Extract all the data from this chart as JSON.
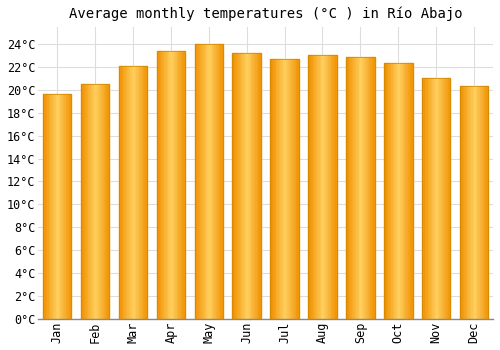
{
  "title": "Average monthly temperatures (°C ) in Río Abajo",
  "months": [
    "Jan",
    "Feb",
    "Mar",
    "Apr",
    "May",
    "Jun",
    "Jul",
    "Aug",
    "Sep",
    "Oct",
    "Nov",
    "Dec"
  ],
  "values": [
    19.6,
    20.5,
    22.1,
    23.4,
    24.0,
    23.2,
    22.7,
    23.0,
    22.9,
    22.3,
    21.0,
    20.3
  ],
  "bar_color_main": "#FFC125",
  "bar_color_edge": "#E8A000",
  "bar_gradient_left": "#FFDD88",
  "bar_gradient_right": "#FFA000",
  "background_color": "#FFFFFF",
  "plot_bg_color": "#FFFFFF",
  "grid_color": "#DDDDDD",
  "ytick_labels": [
    "0°C",
    "2°C",
    "4°C",
    "6°C",
    "8°C",
    "10°C",
    "12°C",
    "14°C",
    "16°C",
    "18°C",
    "20°C",
    "22°C",
    "24°C"
  ],
  "ytick_values": [
    0,
    2,
    4,
    6,
    8,
    10,
    12,
    14,
    16,
    18,
    20,
    22,
    24
  ],
  "ylim": [
    0,
    25.5
  ],
  "title_fontsize": 10,
  "tick_fontsize": 8.5,
  "bar_width": 0.75
}
